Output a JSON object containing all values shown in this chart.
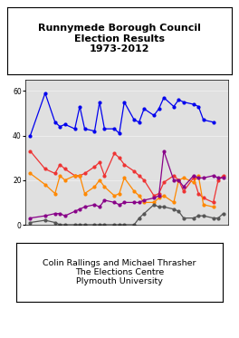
{
  "title": "Runnymede Borough Council\nElection Results\n1973-2012",
  "footer_lines": [
    "Colin Rallings and Michael Thrasher",
    "The Elections Centre",
    "Plymouth University"
  ],
  "blue_x": [
    1973,
    1976,
    1978,
    1979,
    1980,
    1982,
    1983,
    1984,
    1986,
    1987,
    1988,
    1990,
    1991,
    1992,
    1994,
    1995,
    1996,
    1998,
    1999,
    2000,
    2002,
    2003,
    2004,
    2006,
    2007,
    2008,
    2010
  ],
  "blue_y": [
    40,
    59,
    46,
    44,
    45,
    43,
    53,
    43,
    42,
    55,
    43,
    43,
    41,
    55,
    47,
    46,
    52,
    49,
    52,
    57,
    53,
    56,
    55,
    54,
    53,
    47,
    46
  ],
  "red_x": [
    1973,
    1976,
    1978,
    1979,
    1980,
    1982,
    1983,
    1984,
    1986,
    1987,
    1988,
    1990,
    1991,
    1992,
    1994,
    1995,
    1996,
    1998,
    1999,
    2000,
    2002,
    2003,
    2004,
    2006,
    2007,
    2008,
    2010,
    2011,
    2012
  ],
  "red_y": [
    33,
    25,
    23,
    27,
    25,
    22,
    22,
    23,
    26,
    28,
    22,
    32,
    30,
    27,
    24,
    22,
    20,
    13,
    14,
    19,
    22,
    20,
    15,
    21,
    14,
    12,
    10,
    20,
    22
  ],
  "orange_x": [
    1973,
    1976,
    1978,
    1979,
    1980,
    1982,
    1983,
    1984,
    1986,
    1987,
    1988,
    1990,
    1991,
    1992,
    1994,
    1995,
    1996,
    1998,
    1999,
    2000,
    2002,
    2003,
    2004,
    2006,
    2007,
    2008,
    2010
  ],
  "orange_y": [
    23,
    18,
    14,
    22,
    20,
    22,
    22,
    14,
    17,
    20,
    17,
    13,
    14,
    21,
    15,
    13,
    10,
    10,
    12,
    13,
    10,
    20,
    21,
    19,
    22,
    9,
    8
  ],
  "purple_x": [
    1973,
    1976,
    1978,
    1979,
    1980,
    1982,
    1983,
    1984,
    1986,
    1987,
    1988,
    1990,
    1991,
    1992,
    1994,
    1995,
    1996,
    1998,
    1999,
    2000,
    2002,
    2003,
    2004,
    2006,
    2007,
    2008,
    2010,
    2011,
    2012
  ],
  "purple_y": [
    3,
    4,
    5,
    5,
    4,
    6,
    7,
    8,
    9,
    8,
    11,
    10,
    9,
    10,
    10,
    10,
    11,
    12,
    13,
    33,
    20,
    20,
    17,
    22,
    21,
    21,
    22,
    21,
    21
  ],
  "dark_x": [
    1973,
    1976,
    1978,
    1979,
    1980,
    1982,
    1983,
    1984,
    1986,
    1987,
    1988,
    1990,
    1991,
    1992,
    1994,
    1995,
    1996,
    1998,
    1999,
    2000,
    2002,
    2003,
    2004,
    2006,
    2007,
    2008,
    2010,
    2011,
    2012
  ],
  "dark_y": [
    1,
    2,
    1,
    0,
    0,
    0,
    0,
    0,
    0,
    0,
    0,
    0,
    0,
    0,
    0,
    3,
    5,
    9,
    8,
    8,
    7,
    6,
    3,
    3,
    4,
    4,
    3,
    3,
    5
  ],
  "ylim": [
    0,
    65
  ],
  "yticks": [
    0,
    20,
    40,
    60
  ],
  "xlim": [
    1972,
    2013
  ],
  "bg_color": "#e0e0e0",
  "blue_color": "#0000ee",
  "red_color": "#ee3333",
  "orange_color": "#ff8800",
  "purple_color": "#880088",
  "dark_color": "#555555",
  "lw": 0.9,
  "ms": 2.0,
  "fig_w": 2.64,
  "fig_h": 3.73
}
